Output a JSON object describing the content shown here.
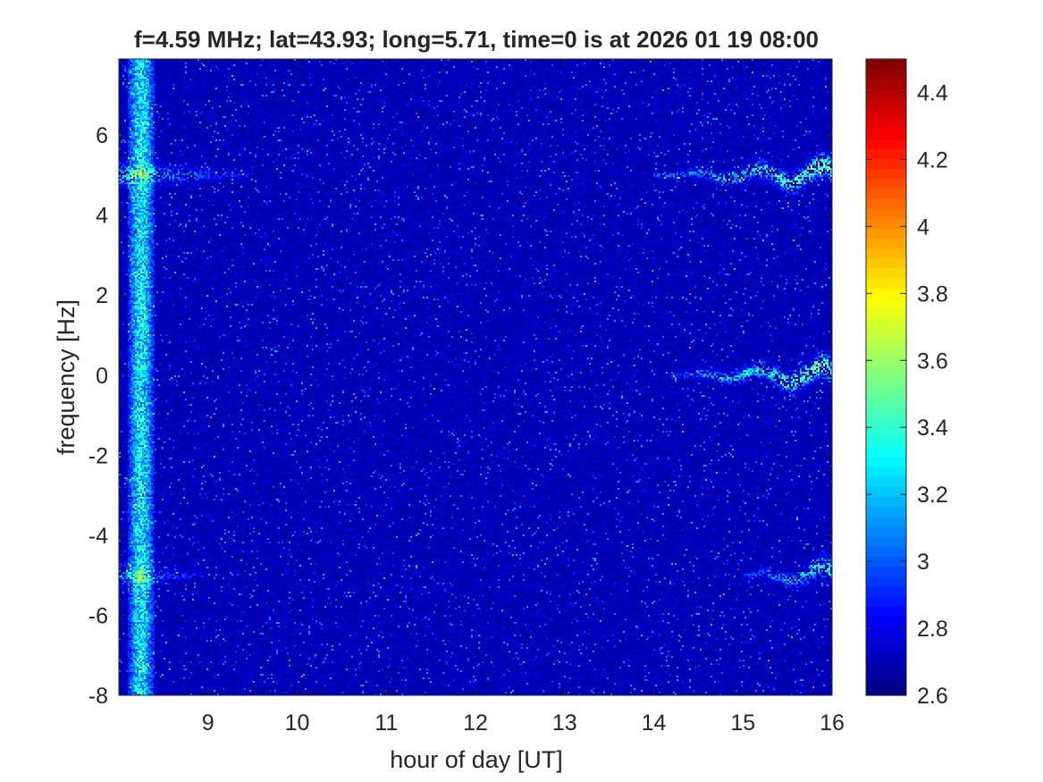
{
  "chart_data": {
    "type": "heatmap",
    "title": "f=4.59 MHz;  lat=43.93; long=5.71, time=0 is at 2026 01 19 08:00",
    "xlabel": "hour of day [UT]",
    "ylabel": "frequency [Hz]",
    "xlim": [
      8.0,
      16.0
    ],
    "ylim": [
      -8,
      7.9
    ],
    "x_ticks": [
      9,
      10,
      11,
      12,
      13,
      14,
      15,
      16
    ],
    "y_ticks": [
      -8,
      -6,
      -4,
      -2,
      0,
      2,
      4,
      6
    ],
    "colorbar": {
      "colormap": "jet",
      "range": [
        2.6,
        4.5
      ],
      "ticks": [
        2.6,
        2.8,
        3.0,
        3.2,
        3.4,
        3.6,
        3.8,
        4.0,
        4.2,
        4.4
      ],
      "tick_labels": [
        "2.6",
        "2.8",
        "3",
        "3.2",
        "3.4",
        "3.6",
        "3.8",
        "4",
        "4.2",
        "4.4"
      ]
    },
    "background_level": 2.7,
    "features": [
      {
        "kind": "broadband band",
        "x_range": [
          8.1,
          8.4
        ],
        "level": 3.3
      },
      {
        "kind": "line",
        "y": 5.0,
        "x_range": [
          8.0,
          9.5
        ],
        "level": 3.2
      },
      {
        "kind": "line",
        "y": 5.0,
        "x_range": [
          14.0,
          16.0
        ],
        "level": 3.5
      },
      {
        "kind": "line",
        "y": 0.0,
        "x_range": [
          14.2,
          16.0
        ],
        "level": 3.5
      },
      {
        "kind": "line",
        "y": -5.0,
        "x_range": [
          15.0,
          16.0
        ],
        "level": 3.3
      },
      {
        "kind": "line",
        "y": -5.0,
        "x_range": [
          8.0,
          9.0
        ],
        "level": 3.1
      }
    ],
    "grid": false,
    "legend": "none"
  }
}
